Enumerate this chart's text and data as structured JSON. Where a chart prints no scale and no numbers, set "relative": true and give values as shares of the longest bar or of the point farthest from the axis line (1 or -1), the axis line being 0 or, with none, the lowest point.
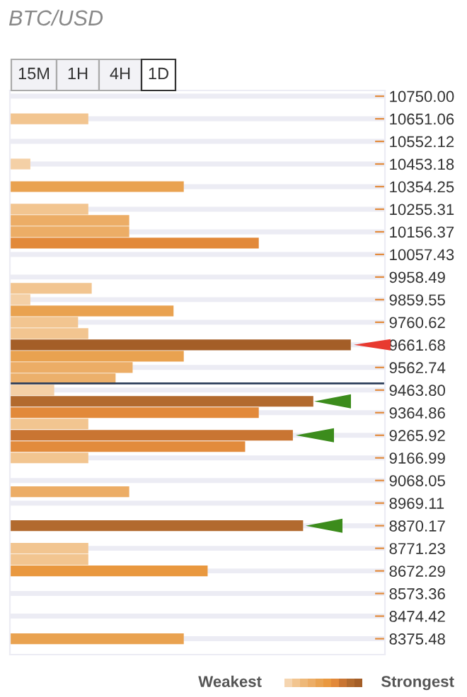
{
  "chart_data": {
    "type": "bar",
    "orientation": "horizontal",
    "relative": true,
    "title": "BTC/USD",
    "x": [
      10651.06,
      10453.18,
      10354.25,
      10255.31,
      10205.84,
      10156.37,
      10106.9,
      9909.02,
      9859.55,
      9810.08,
      9760.62,
      9711.15,
      9661.68,
      9612.21,
      9562.74,
      9513.27,
      9463.8,
      9414.33,
      9364.86,
      9315.39,
      9265.92,
      9216.45,
      9166.99,
      9018.58,
      8870.17,
      8771.23,
      8721.76,
      8672.29,
      8375.48
    ],
    "values": [
      0.23,
      0.06,
      0.51,
      0.23,
      0.35,
      0.35,
      0.73,
      0.24,
      0.06,
      0.48,
      0.2,
      0.23,
      1,
      0.51,
      0.36,
      0.31,
      0.13,
      0.89,
      0.73,
      0.23,
      0.83,
      0.69,
      0.23,
      0.35,
      0.86,
      0.23,
      0.23,
      0.58,
      0.51
    ],
    "colors": [
      "#f2c590",
      "#f4d0a6",
      "#e9a250",
      "#f2c590",
      "#ecad66",
      "#ecad66",
      "#e2893a",
      "#f2c590",
      "#f4d0a6",
      "#e9a250",
      "#f2c590",
      "#f2c590",
      "#a45e27",
      "#e9a250",
      "#ecad66",
      "#ecb06b",
      "#f4d0a6",
      "#b26a2e",
      "#e2893a",
      "#f2c590",
      "#c97532",
      "#e28b3c",
      "#f2c590",
      "#ecad66",
      "#b26a2e",
      "#f2c590",
      "#f2c590",
      "#e9983f",
      "#e9a250"
    ],
    "ylim": [
      8306,
      10775
    ],
    "yticks": [
      {
        "value": 10750,
        "label": "10750.00"
      },
      10651.06,
      10552.12,
      10453.18,
      10354.25,
      10255.31,
      10156.37,
      10057.43,
      9958.49,
      9859.55,
      9760.62,
      9661.68,
      9562.74,
      {
        "value": 9463.8,
        "label": "9463.80"
      },
      9364.86,
      9265.92,
      9166.99,
      9068.05,
      8969.11,
      8870.17,
      8771.23,
      8672.29,
      8573.36,
      8474.42,
      8375.48
    ],
    "grid": "y",
    "ref_lines": [
      {
        "axis": "y",
        "value": 9493,
        "color": "#2c3e5a"
      }
    ],
    "annotations": [
      "15M",
      "1H",
      "4H",
      "1D",
      "Weakest",
      "Strongest"
    ]
  }
}
